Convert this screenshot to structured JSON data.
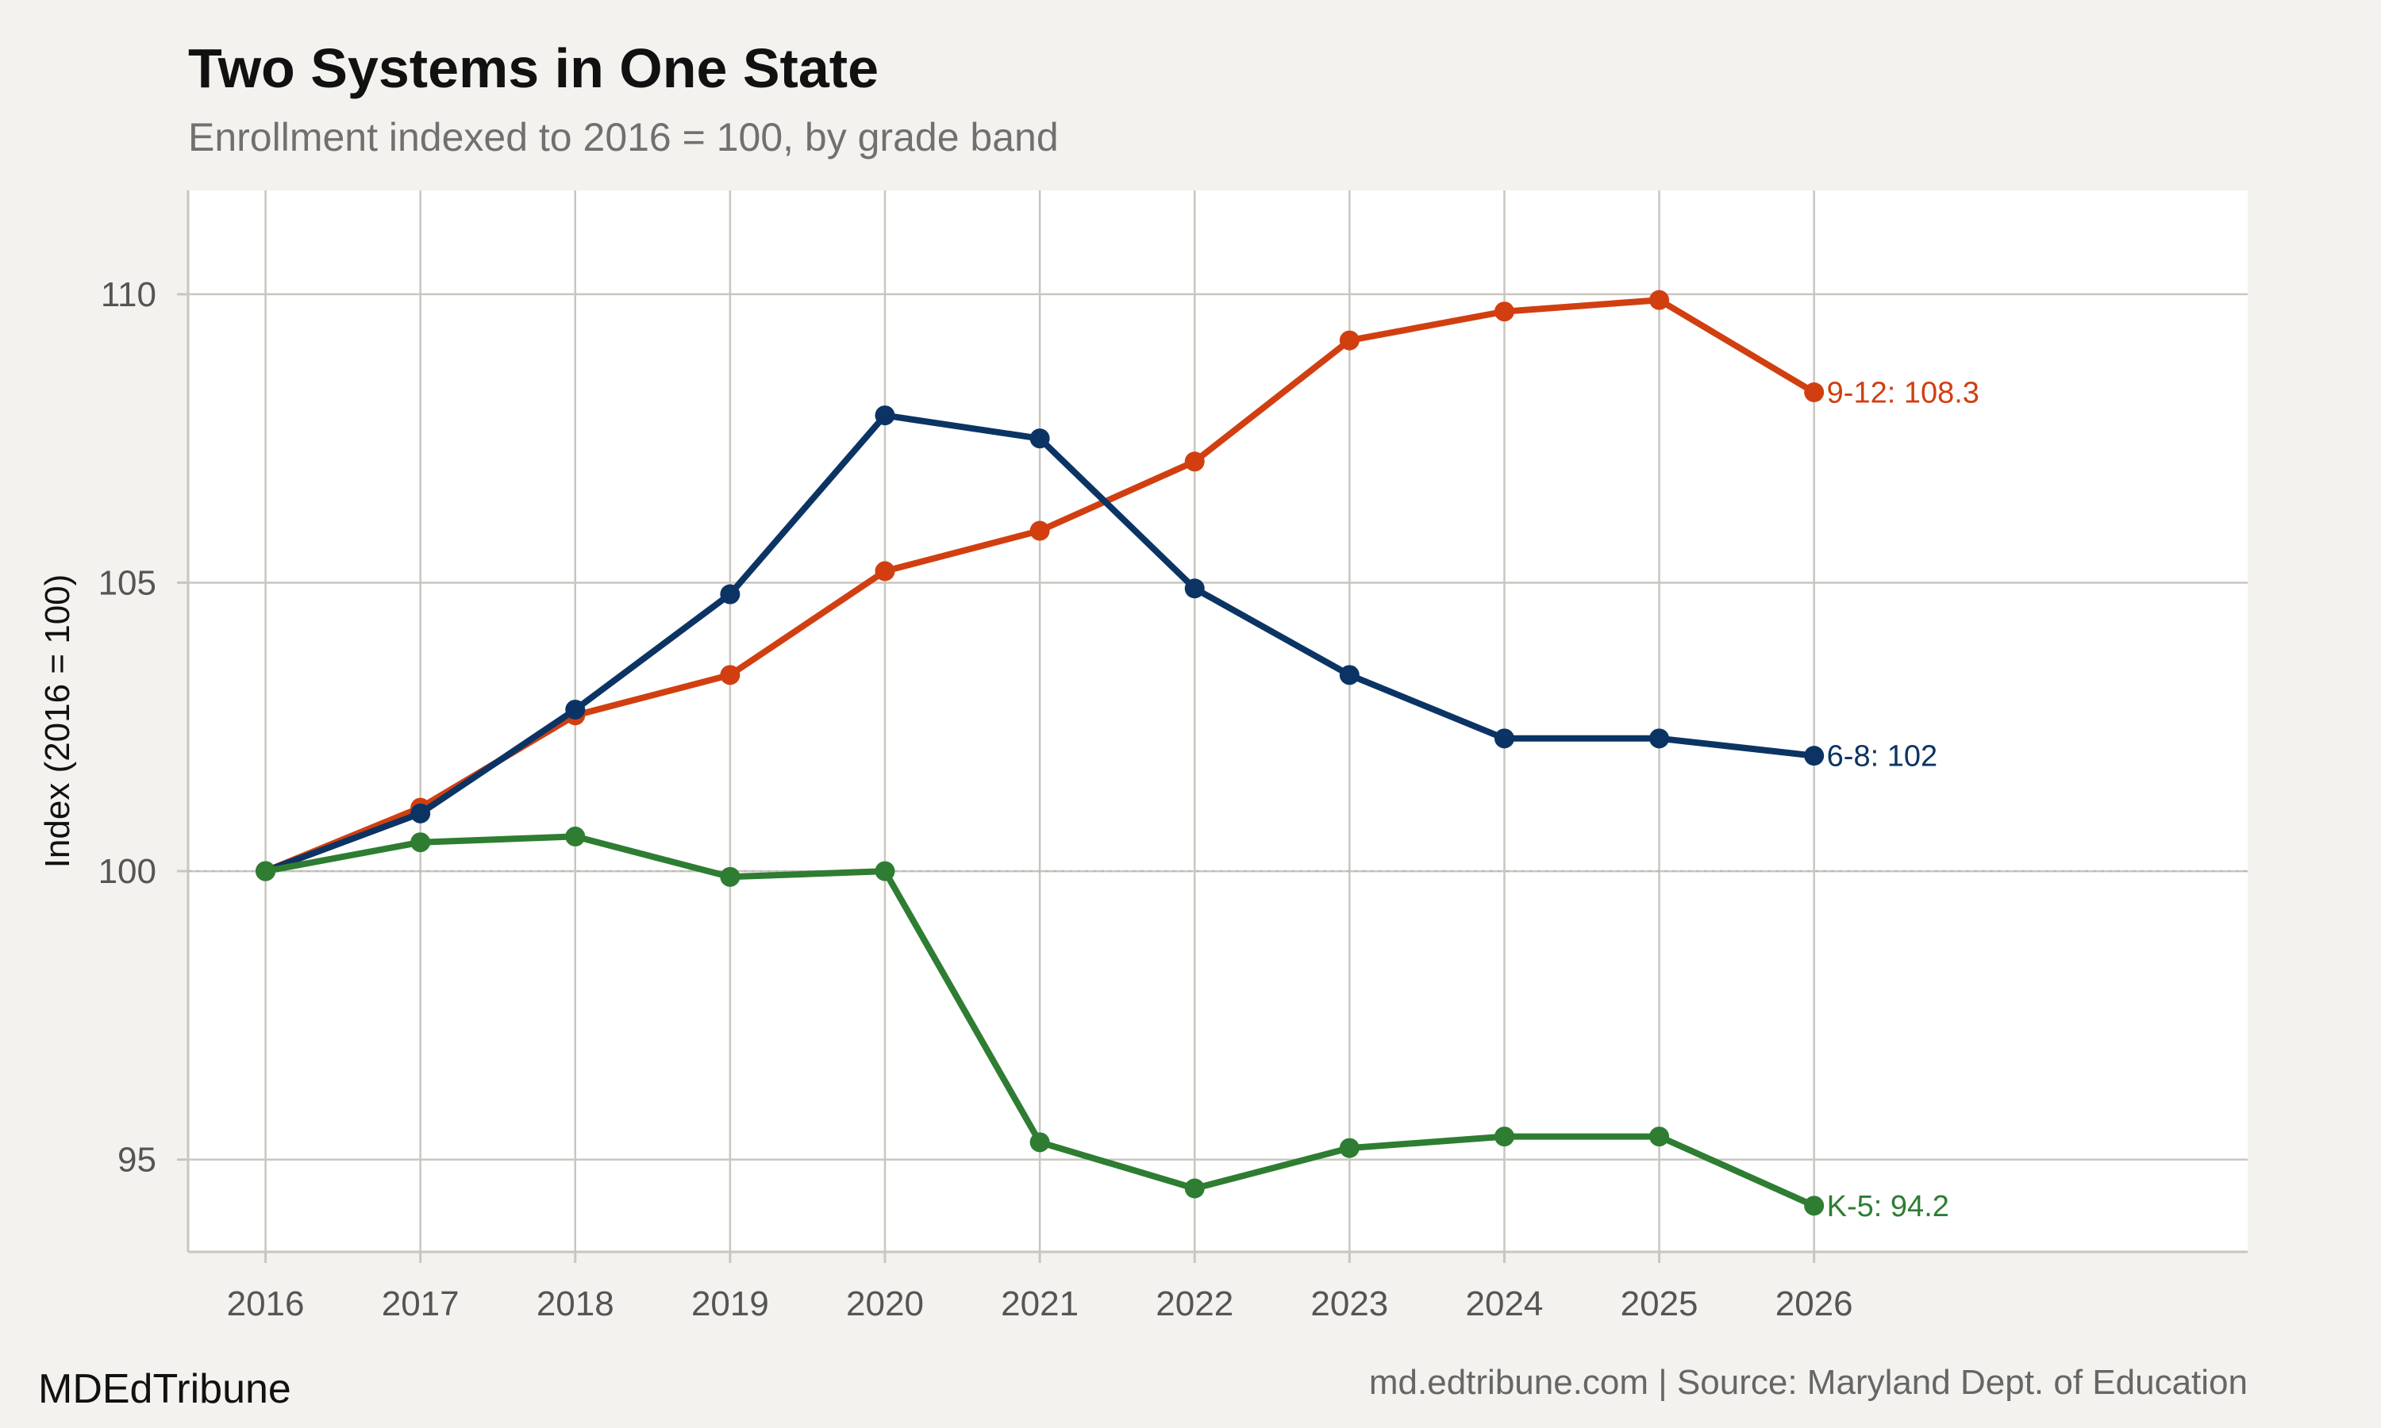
{
  "chart_data": {
    "type": "line",
    "title": "Two Systems in One State",
    "subtitle": "Enrollment indexed to 2016 = 100, by grade band",
    "ylabel": "Index (2016 = 100)",
    "xlabel": "",
    "x": [
      2016,
      2017,
      2018,
      2019,
      2020,
      2021,
      2022,
      2023,
      2024,
      2025,
      2026
    ],
    "xlim": [
      2015.5,
      2028.8
    ],
    "ylim": [
      93.4,
      111.8
    ],
    "yticks": [
      95,
      100,
      105,
      110
    ],
    "grid": true,
    "reference_line": 100,
    "series": [
      {
        "name": "9-12",
        "color": "#d13f11",
        "values": [
          100,
          101.1,
          102.7,
          103.4,
          105.2,
          105.9,
          107.1,
          109.2,
          109.7,
          109.9,
          108.3
        ],
        "end_label": "9-12: 108.3"
      },
      {
        "name": "6-8",
        "color": "#0b3464",
        "values": [
          100,
          101.0,
          102.8,
          104.8,
          107.9,
          107.5,
          104.9,
          103.4,
          102.3,
          102.3,
          102
        ],
        "end_label": "6-8: 102"
      },
      {
        "name": "K-5",
        "color": "#2e7d32",
        "values": [
          100,
          100.5,
          100.6,
          99.9,
          100,
          95.3,
          94.5,
          95.2,
          95.4,
          95.4,
          94.2
        ],
        "end_label": "K-5: 94.2"
      }
    ]
  },
  "footer": {
    "brand": "MDEdTribune",
    "source": "md.edtribune.com | Source: Maryland Dept. of Education"
  }
}
